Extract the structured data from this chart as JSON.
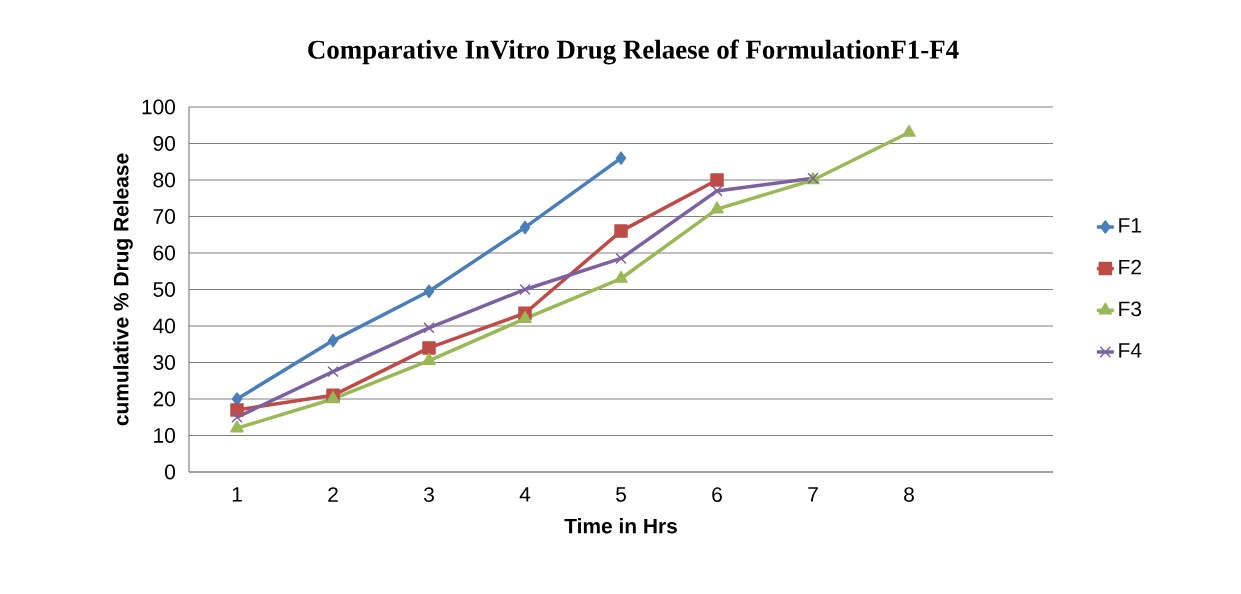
{
  "chart_data": {
    "type": "line",
    "title": "Comparative InVitro Drug Relaese of FormulationF1-F4",
    "xlabel": "Time in Hrs",
    "ylabel": "cumulative % Drug Release",
    "categories": [
      "1",
      "2",
      "3",
      "4",
      "5",
      "6",
      "7",
      "8",
      null
    ],
    "series": [
      {
        "name": "F1",
        "color": "#4a7ebb",
        "marker": "diamond",
        "values": [
          20,
          36,
          49.5,
          67,
          86,
          null,
          null,
          null,
          null
        ]
      },
      {
        "name": "F2",
        "color": "#be4b48",
        "marker": "square",
        "values": [
          17,
          21,
          34,
          43.5,
          66,
          80,
          null,
          null,
          null
        ]
      },
      {
        "name": "F3",
        "color": "#98b954",
        "marker": "triangle",
        "values": [
          12,
          20,
          30.5,
          42,
          53,
          72,
          80,
          93,
          null
        ]
      },
      {
        "name": "F4",
        "color": "#7d60a0",
        "marker": "cross",
        "values": [
          15,
          27.5,
          39.5,
          50,
          58.5,
          77,
          80.5,
          null,
          null
        ]
      }
    ],
    "ylim": [
      0,
      100
    ],
    "yticks": [
      0,
      10,
      20,
      30,
      40,
      50,
      60,
      70,
      80,
      90,
      100
    ],
    "grid": "y",
    "legend": "right",
    "line_style": "solid"
  }
}
